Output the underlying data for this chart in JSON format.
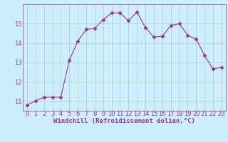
{
  "x": [
    0,
    1,
    2,
    3,
    4,
    5,
    6,
    7,
    8,
    9,
    10,
    11,
    12,
    13,
    14,
    15,
    16,
    17,
    18,
    19,
    20,
    21,
    22,
    23
  ],
  "y": [
    10.8,
    11.0,
    11.2,
    11.2,
    11.2,
    13.1,
    14.1,
    14.7,
    14.75,
    15.2,
    15.55,
    15.55,
    15.15,
    15.6,
    14.8,
    14.3,
    14.35,
    14.9,
    15.0,
    14.4,
    14.2,
    13.35,
    12.65,
    12.75
  ],
  "line_color": "#993399",
  "marker": "D",
  "marker_size": 2.5,
  "xlabel": "Windchill (Refroidissement éolien,°C)",
  "xlim": [
    -0.5,
    23.5
  ],
  "ylim": [
    10.5,
    16.0
  ],
  "yticks": [
    11,
    12,
    13,
    14,
    15
  ],
  "xticks": [
    0,
    1,
    2,
    3,
    4,
    5,
    6,
    7,
    8,
    9,
    10,
    11,
    12,
    13,
    14,
    15,
    16,
    17,
    18,
    19,
    20,
    21,
    22,
    23
  ],
  "bg_color": "#cceeff",
  "grid_color": "#aaccbb",
  "label_fontsize": 6.5,
  "tick_fontsize": 6.0
}
